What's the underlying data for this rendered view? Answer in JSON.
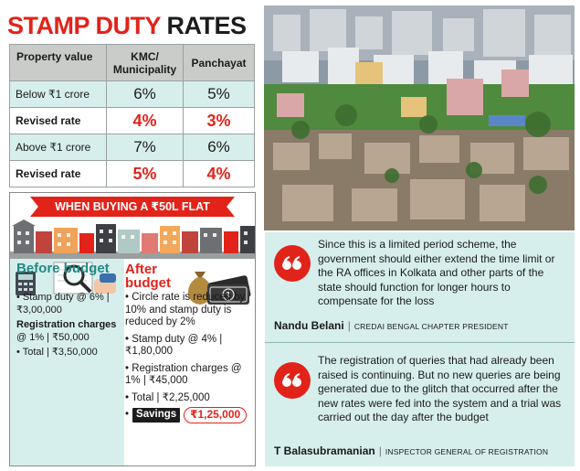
{
  "rates_box": {
    "title_part1": "STAMP DUTY",
    "title_part2": "RATES",
    "columns": [
      "Property value",
      "KMC/ Municipality",
      "Panchayat"
    ],
    "rows": [
      {
        "label": "Below ₹1 crore",
        "kmc": "6%",
        "panchayat": "5%",
        "kind": "plain"
      },
      {
        "label": "Revised rate",
        "kmc": "4%",
        "panchayat": "3%",
        "kind": "revised"
      },
      {
        "label": "Above ₹1 crore",
        "kmc": "7%",
        "panchayat": "6%",
        "kind": "plain"
      },
      {
        "label": "Revised rate",
        "kmc": "5%",
        "panchayat": "4%",
        "kind": "revised"
      }
    ]
  },
  "flat_box": {
    "banner": "WHEN BUYING A ₹50L FLAT",
    "before": {
      "title": "Before budget",
      "stamp_duty": "Stamp duty @ 6% | ₹3,00,000",
      "registration_head": "Registration charges",
      "registration_value": "@ 1% | ₹50,000",
      "total": "Total | ₹3,50,000"
    },
    "after": {
      "title": "After budget",
      "circle_rate": "Circle rate is reduced by 10% and stamp duty is reduced by 2%",
      "stamp_duty": "Stamp duty @ 4% | ₹1,80,000",
      "registration": "Registration charges @ 1% | ₹45,000",
      "total": "Total | ₹2,25,000",
      "savings_label": "Savings",
      "savings_value": "₹1,25,000"
    }
  },
  "quotes": [
    {
      "text": "Since this is a limited period scheme, the government should either extend the time limit or the RA offices in Kolkata and other parts of the state should function for longer hours to compensate for the loss",
      "name": "Nandu Belani",
      "role": "CREDAI BENGAL CHAPTER PRESIDENT"
    },
    {
      "text": "The registration of queries that had already been raised is continuing. But no new queries are being generated due to the glitch that occurred after the new rates were fed into the system and a trial was carried out the day after the budget",
      "name": "T Balasubramanian",
      "role": "INSPECTOR GENERAL OF REGISTRATION"
    }
  ],
  "colors": {
    "accent_red": "#e2231a",
    "panel_teal": "#d7efec",
    "teal_text": "#1f8a86",
    "header_grey": "#c9ccc8"
  },
  "icons": [
    "quote-icon",
    "calculator-icon",
    "magnifier-icon",
    "money-bag-icon",
    "banknote-icon",
    "buildings-illustration",
    "city-photo"
  ]
}
